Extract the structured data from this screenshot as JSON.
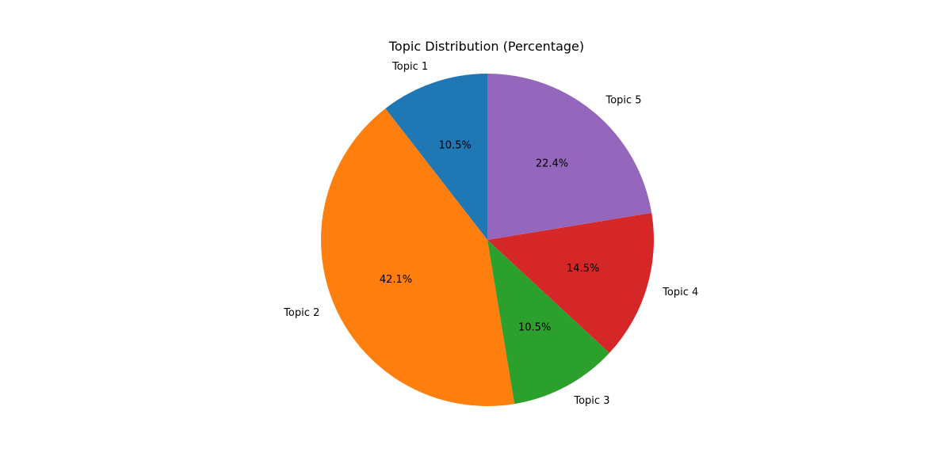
{
  "chart_data": {
    "type": "pie",
    "title": "Topic Distribution (Percentage)",
    "categories": [
      "Topic 1",
      "Topic 2",
      "Topic 3",
      "Topic 4",
      "Topic 5"
    ],
    "values": [
      10.5,
      42.1,
      10.5,
      14.5,
      22.4
    ],
    "value_labels": [
      "10.5%",
      "42.1%",
      "10.5%",
      "14.5%",
      "22.4%"
    ],
    "colors": [
      "#1f77b4",
      "#ff7f0e",
      "#2ca02c",
      "#d62728",
      "#9467bd"
    ],
    "start_angle_deg": 90,
    "direction": "counterclockwise",
    "legend": "none",
    "grid": false
  }
}
